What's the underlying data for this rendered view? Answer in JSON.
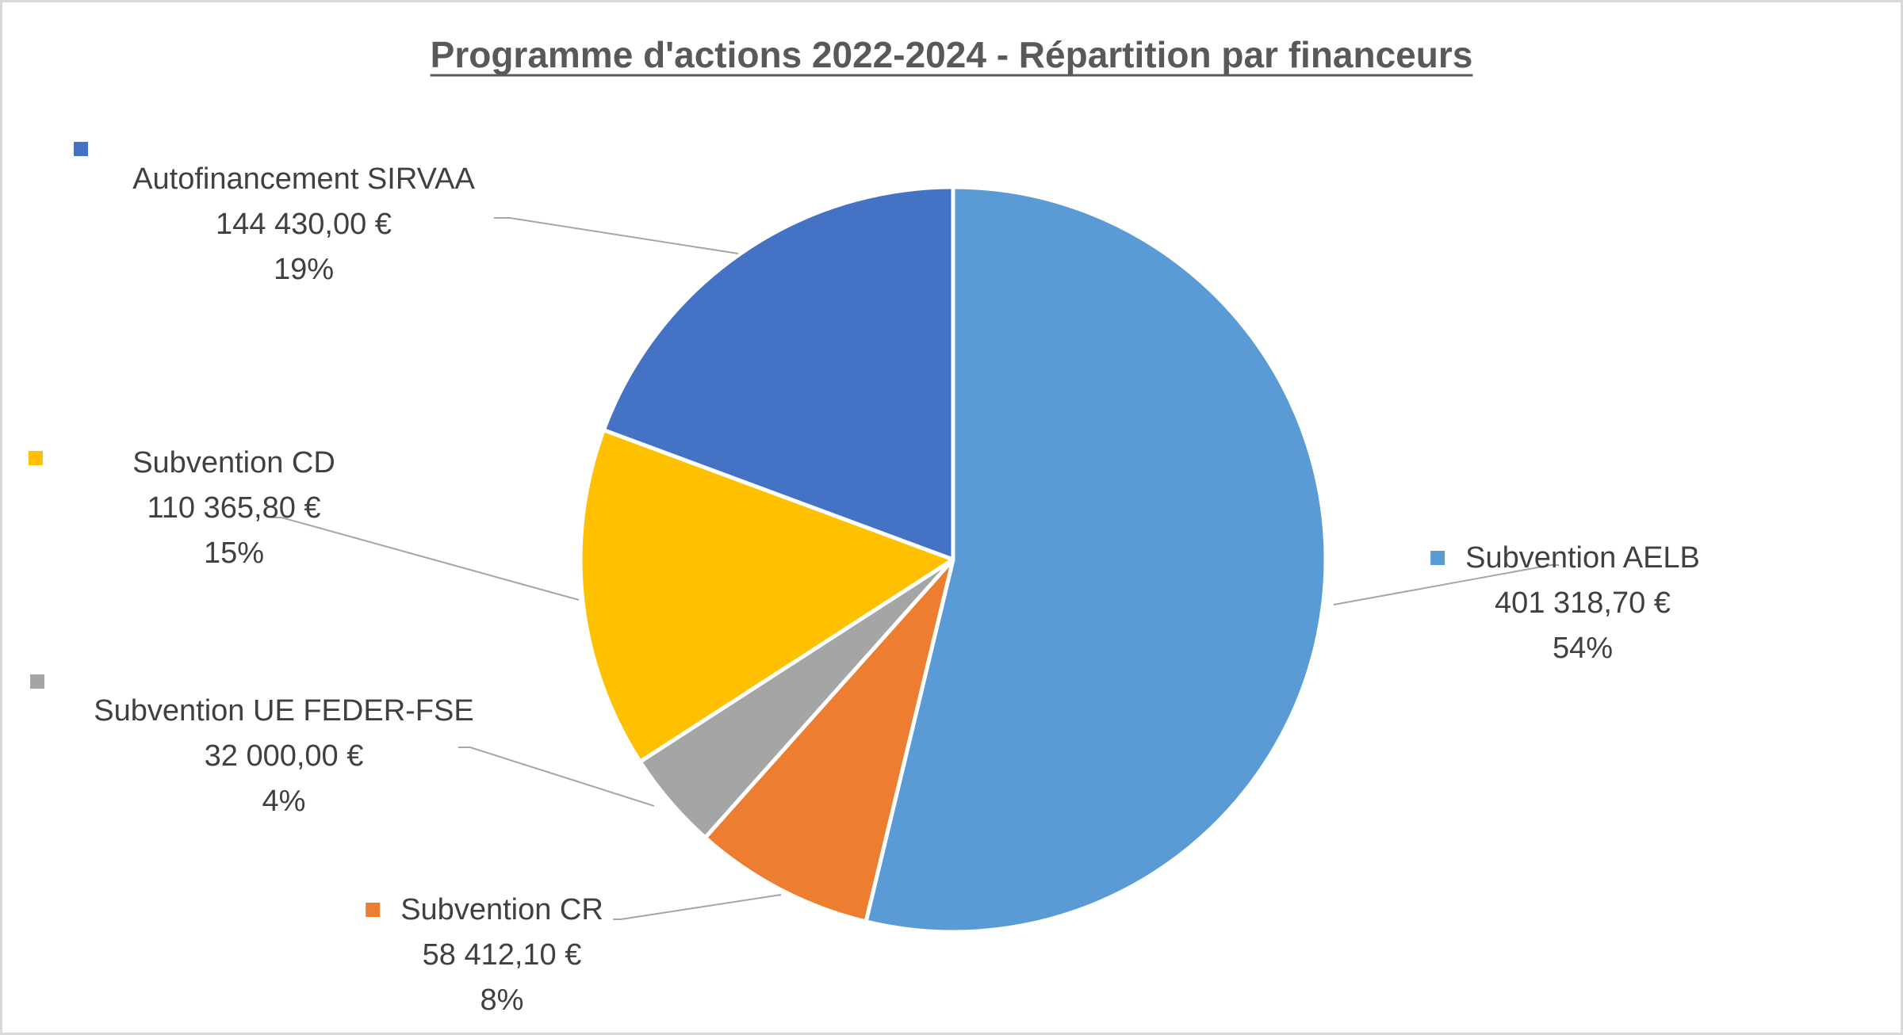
{
  "chart_data": {
    "type": "pie",
    "title": "Programme d'actions 2022-2024 - Répartition par financeurs",
    "slices": [
      {
        "name": "Subvention AELB",
        "value": 401318.7,
        "value_label": "401 318,70 €",
        "percent_label": "54%",
        "color": "#5b9bd5"
      },
      {
        "name": "Subvention CR",
        "value": 58412.1,
        "value_label": "58 412,10 €",
        "percent_label": "8%",
        "color": "#ed7d31"
      },
      {
        "name": "Subvention UE FEDER-FSE",
        "value": 32000.0,
        "value_label": "32 000,00 €",
        "percent_label": "4%",
        "color": "#a5a5a5"
      },
      {
        "name": "Subvention CD",
        "value": 110365.8,
        "value_label": "110 365,80 €",
        "percent_label": "15%",
        "color": "#ffc000"
      },
      {
        "name": "Autofinancement SIRVAA",
        "value": 144430.0,
        "value_label": "144 430,00 €",
        "percent_label": "19%",
        "color": "#4472c4"
      }
    ]
  }
}
